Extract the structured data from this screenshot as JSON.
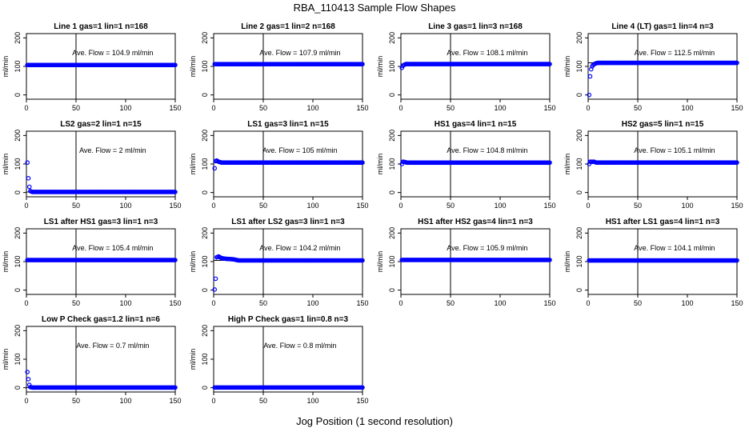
{
  "figure": {
    "title": "RBA_110413  Sample Flow Shapes",
    "xlabel": "Jog Position (1 second resolution)"
  },
  "chart_data": [
    {
      "type": "scatter",
      "title": "Line 1 gas=1 lin=1 n=168",
      "ylabel": "ml/min",
      "annotation": "Ave. Flow = 104.9  ml/min",
      "xlim": [
        0,
        150
      ],
      "ylim": [
        -15,
        215
      ],
      "xticks": [
        0,
        50,
        100,
        150
      ],
      "yticks": [
        0,
        100,
        200
      ],
      "vline_x": 50,
      "hline_y": 104.9,
      "series": [
        {
          "name": "",
          "color": "#0000ff",
          "profile": [
            [
              1,
              104.9
            ],
            [
              150,
              104.9
            ]
          ]
        }
      ]
    },
    {
      "type": "scatter",
      "title": "Line 2 gas=1 lin=2 n=168",
      "ylabel": "ml/min",
      "annotation": "Ave. Flow = 107.9  ml/min",
      "xlim": [
        0,
        150
      ],
      "ylim": [
        -15,
        215
      ],
      "xticks": [
        0,
        50,
        100,
        150
      ],
      "yticks": [
        0,
        100,
        200
      ],
      "vline_x": 50,
      "hline_y": 107.9,
      "series": [
        {
          "name": "",
          "color": "#0000ff",
          "profile": [
            [
              1,
              107.9
            ],
            [
              150,
              107.9
            ]
          ]
        }
      ]
    },
    {
      "type": "scatter",
      "title": "Line 3 gas=1 lin=3 n=168",
      "ylabel": "ml/min",
      "annotation": "Ave. Flow = 108.1  ml/min",
      "xlim": [
        0,
        150
      ],
      "ylim": [
        -15,
        215
      ],
      "xticks": [
        0,
        50,
        100,
        150
      ],
      "yticks": [
        0,
        100,
        200
      ],
      "vline_x": 50,
      "hline_y": 108.1,
      "series": [
        {
          "name": "",
          "color": "#0000ff",
          "profile": [
            [
              1,
              95
            ],
            [
              2,
              102
            ],
            [
              3,
              105
            ],
            [
              5,
              108.1
            ],
            [
              150,
              108.1
            ]
          ]
        }
      ]
    },
    {
      "type": "scatter",
      "title": "Line 4 (LT) gas=1 lin=4 n=3",
      "ylabel": "ml/min",
      "annotation": "Ave. Flow = 112.5  ml/min",
      "xlim": [
        0,
        150
      ],
      "ylim": [
        -15,
        215
      ],
      "xticks": [
        0,
        50,
        100,
        150
      ],
      "yticks": [
        0,
        100,
        200
      ],
      "vline_x": 50,
      "hline_y": 112.5,
      "series": [
        {
          "name": "",
          "color": "#0000ff",
          "profile": [
            [
              1,
              0
            ],
            [
              2,
              65
            ],
            [
              3,
              90
            ],
            [
              4,
              100
            ],
            [
              5,
              105
            ],
            [
              6,
              108
            ],
            [
              8,
              111
            ],
            [
              10,
              112.5
            ],
            [
              150,
              112.5
            ]
          ]
        }
      ]
    },
    {
      "type": "scatter",
      "title": "LS2 gas=2 lin=1 n=15",
      "ylabel": "ml/min",
      "annotation": "Ave. Flow = 2  ml/min",
      "xlim": [
        0,
        150
      ],
      "ylim": [
        -15,
        215
      ],
      "xticks": [
        0,
        50,
        100,
        150
      ],
      "yticks": [
        0,
        100,
        200
      ],
      "vline_x": 50,
      "hline_y": 2,
      "series": [
        {
          "name": "",
          "color": "#0000ff",
          "profile": [
            [
              1,
              105
            ],
            [
              2,
              50
            ],
            [
              3,
              20
            ],
            [
              4,
              5
            ],
            [
              6,
              2
            ],
            [
              150,
              2
            ]
          ]
        }
      ]
    },
    {
      "type": "scatter",
      "title": "LS1 gas=3 lin=1 n=15",
      "ylabel": "ml/min",
      "annotation": "Ave. Flow = 105  ml/min",
      "xlim": [
        0,
        150
      ],
      "ylim": [
        -15,
        215
      ],
      "xticks": [
        0,
        50,
        100,
        150
      ],
      "yticks": [
        0,
        100,
        200
      ],
      "vline_x": 50,
      "hline_y": 105,
      "series": [
        {
          "name": "",
          "color": "#0000ff",
          "profile": [
            [
              1,
              85
            ],
            [
              2,
              110
            ],
            [
              3,
              112
            ],
            [
              5,
              108
            ],
            [
              8,
              105
            ],
            [
              150,
              105
            ]
          ]
        }
      ]
    },
    {
      "type": "scatter",
      "title": "HS1 gas=4 lin=1 n=15",
      "ylabel": "ml/min",
      "annotation": "Ave. Flow = 104.8  ml/min",
      "xlim": [
        0,
        150
      ],
      "ylim": [
        -15,
        215
      ],
      "xticks": [
        0,
        50,
        100,
        150
      ],
      "yticks": [
        0,
        100,
        200
      ],
      "vline_x": 50,
      "hline_y": 104.8,
      "series": [
        {
          "name": "",
          "color": "#0000ff",
          "profile": [
            [
              1,
              100
            ],
            [
              2,
              108
            ],
            [
              4,
              107
            ],
            [
              6,
              104.8
            ],
            [
              150,
              104.8
            ]
          ]
        }
      ]
    },
    {
      "type": "scatter",
      "title": "HS2 gas=5 lin=1 n=15",
      "ylabel": "ml/min",
      "annotation": "Ave. Flow = 105.1  ml/min",
      "xlim": [
        0,
        150
      ],
      "ylim": [
        -15,
        215
      ],
      "xticks": [
        0,
        50,
        100,
        150
      ],
      "yticks": [
        0,
        100,
        200
      ],
      "vline_x": 50,
      "hline_y": 105.1,
      "series": [
        {
          "name": "",
          "color": "#0000ff",
          "profile": [
            [
              1,
              100
            ],
            [
              2,
              108
            ],
            [
              6,
              108
            ],
            [
              8,
              105.1
            ],
            [
              150,
              105.1
            ]
          ]
        }
      ]
    },
    {
      "type": "scatter",
      "title": "LS1 after HS1 gas=3 lin=1 n=3",
      "ylabel": "ml/min",
      "annotation": "Ave. Flow = 105.4  ml/min",
      "xlim": [
        0,
        150
      ],
      "ylim": [
        -15,
        215
      ],
      "xticks": [
        0,
        50,
        100,
        150
      ],
      "yticks": [
        0,
        100,
        200
      ],
      "vline_x": 50,
      "hline_y": 105.4,
      "series": [
        {
          "name": "",
          "color": "#0000ff",
          "profile": [
            [
              1,
              105.4
            ],
            [
              150,
              105.4
            ]
          ]
        }
      ]
    },
    {
      "type": "scatter",
      "title": "LS1 after LS2 gas=3 lin=1 n=3",
      "ylabel": "ml/min",
      "annotation": "Ave. Flow = 104.2  ml/min",
      "xlim": [
        0,
        150
      ],
      "ylim": [
        -15,
        215
      ],
      "xticks": [
        0,
        50,
        100,
        150
      ],
      "yticks": [
        0,
        100,
        200
      ],
      "vline_x": 50,
      "hline_y": 104.2,
      "series": [
        {
          "name": "",
          "color": "#0000ff",
          "profile": [
            [
              1,
              2
            ],
            [
              2,
              40
            ],
            [
              3,
              115
            ],
            [
              5,
              118
            ],
            [
              8,
              112
            ],
            [
              12,
              110
            ],
            [
              20,
              108
            ],
            [
              25,
              104.2
            ],
            [
              150,
              104.2
            ]
          ]
        }
      ]
    },
    {
      "type": "scatter",
      "title": "HS1 after HS2 gas=4 lin=1 n=3",
      "ylabel": "ml/min",
      "annotation": "Ave. Flow = 105.9  ml/min",
      "xlim": [
        0,
        150
      ],
      "ylim": [
        -15,
        215
      ],
      "xticks": [
        0,
        50,
        100,
        150
      ],
      "yticks": [
        0,
        100,
        200
      ],
      "vline_x": 50,
      "hline_y": 105.9,
      "series": [
        {
          "name": "",
          "color": "#0000ff",
          "profile": [
            [
              1,
              105.9
            ],
            [
              150,
              105.9
            ]
          ]
        }
      ]
    },
    {
      "type": "scatter",
      "title": "HS1 after LS1 gas=4 lin=1 n=3",
      "ylabel": "ml/min",
      "annotation": "Ave. Flow = 104.1  ml/min",
      "xlim": [
        0,
        150
      ],
      "ylim": [
        -15,
        215
      ],
      "xticks": [
        0,
        50,
        100,
        150
      ],
      "yticks": [
        0,
        100,
        200
      ],
      "vline_x": 50,
      "hline_y": 104.1,
      "series": [
        {
          "name": "",
          "color": "#0000ff",
          "profile": [
            [
              1,
              104.1
            ],
            [
              150,
              104.1
            ]
          ]
        }
      ]
    },
    {
      "type": "scatter",
      "title": "Low P Check gas=1.2 lin=1 n=6",
      "ylabel": "ml/min",
      "annotation": "Ave. Flow = 0.7  ml/min",
      "xlim": [
        0,
        150
      ],
      "ylim": [
        -15,
        215
      ],
      "xticks": [
        0,
        50,
        100,
        150
      ],
      "yticks": [
        0,
        100,
        200
      ],
      "vline_x": 50,
      "hline_y": 0.7,
      "series": [
        {
          "name": "",
          "color": "#0000ff",
          "profile": [
            [
              1,
              55
            ],
            [
              2,
              30
            ],
            [
              3,
              10
            ],
            [
              4,
              2
            ],
            [
              6,
              0.7
            ],
            [
              150,
              0.7
            ]
          ]
        }
      ]
    },
    {
      "type": "scatter",
      "title": "High P Check gas=1 lin=0.8 n=3",
      "ylabel": "ml/min",
      "annotation": "Ave. Flow = 0.8  ml/min",
      "xlim": [
        0,
        150
      ],
      "ylim": [
        -15,
        215
      ],
      "xticks": [
        0,
        50,
        100,
        150
      ],
      "yticks": [
        0,
        100,
        200
      ],
      "vline_x": 50,
      "hline_y": 0.8,
      "series": [
        {
          "name": "",
          "color": "#0000ff",
          "profile": [
            [
              1,
              0.8
            ],
            [
              150,
              0.8
            ]
          ]
        }
      ]
    }
  ]
}
